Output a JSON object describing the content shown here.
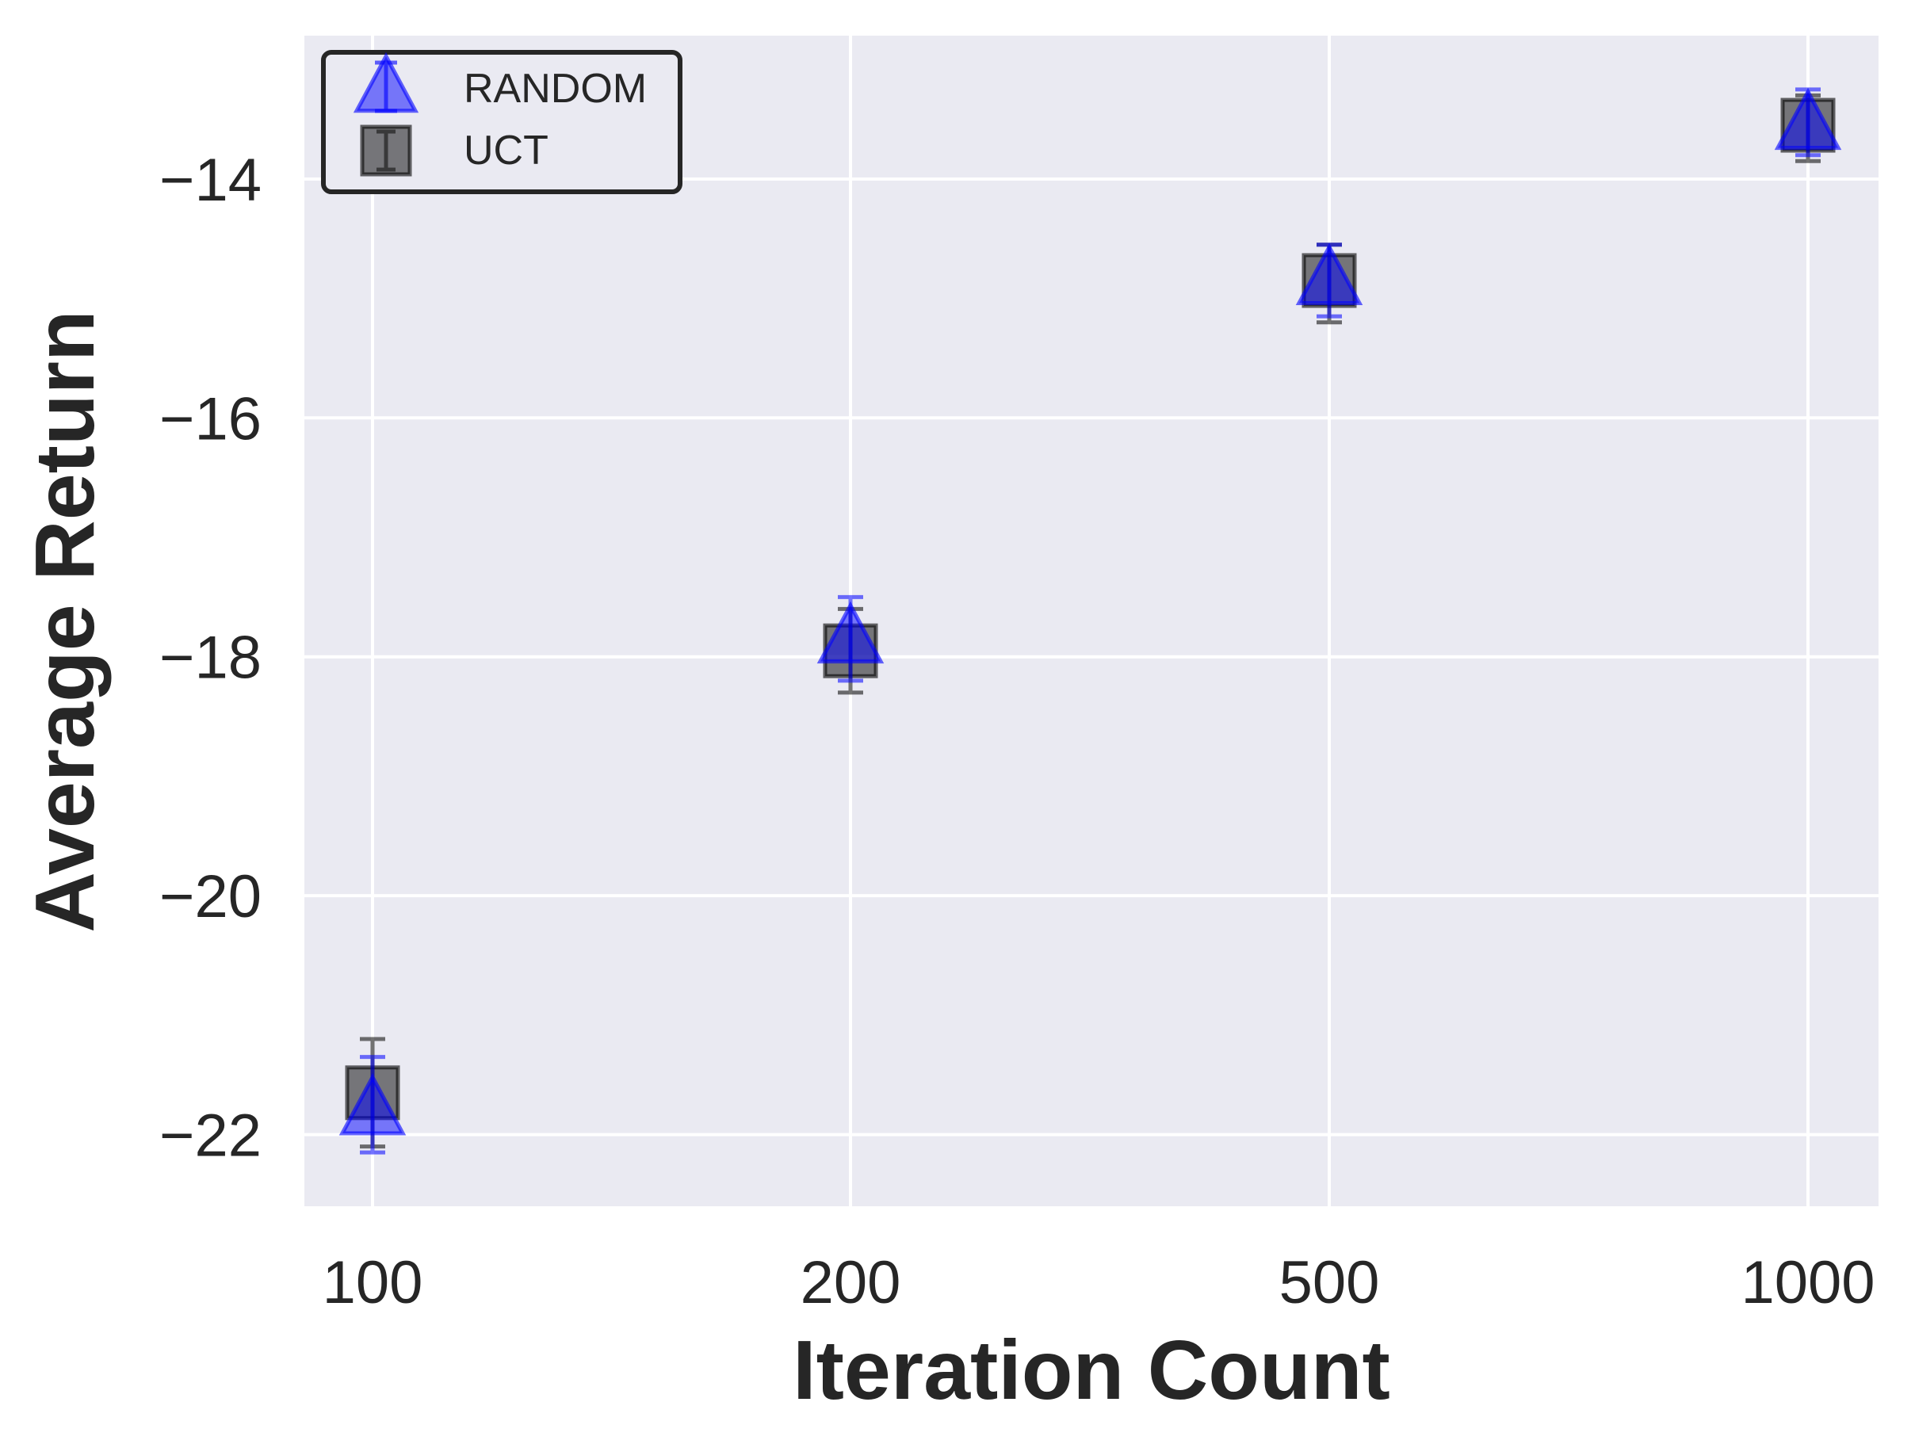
{
  "chart_data": {
    "type": "scatter",
    "title": "",
    "xlabel": "Iteration Count",
    "ylabel": "Average Return",
    "categories": [
      "100",
      "200",
      "500",
      "1000"
    ],
    "ylim": [
      -22.6,
      -12.8
    ],
    "yticks": [
      -14,
      -16,
      -18,
      -20,
      -22
    ],
    "ytick_labels": [
      "−14",
      "−16",
      "−18",
      "−20",
      "−22"
    ],
    "grid": true,
    "legend_position": "top-left",
    "background_color": "#eaeaf2",
    "series": [
      {
        "name": "RANDOM",
        "marker": "triangle",
        "color": "#0000ff",
        "values": [
          -21.8,
          -17.85,
          -14.85,
          -13.55
        ],
        "err_low": [
          -22.15,
          -18.2,
          -15.15,
          -13.8
        ],
        "err_high": [
          -21.35,
          -17.5,
          -14.55,
          -13.25
        ]
      },
      {
        "name": "UCT",
        "marker": "square",
        "color": "#000000",
        "values": [
          -21.65,
          -17.95,
          -14.85,
          -13.55
        ],
        "err_low": [
          -22.1,
          -18.3,
          -15.2,
          -13.85
        ],
        "err_high": [
          -21.2,
          -17.6,
          -14.55,
          -13.3
        ]
      }
    ]
  }
}
